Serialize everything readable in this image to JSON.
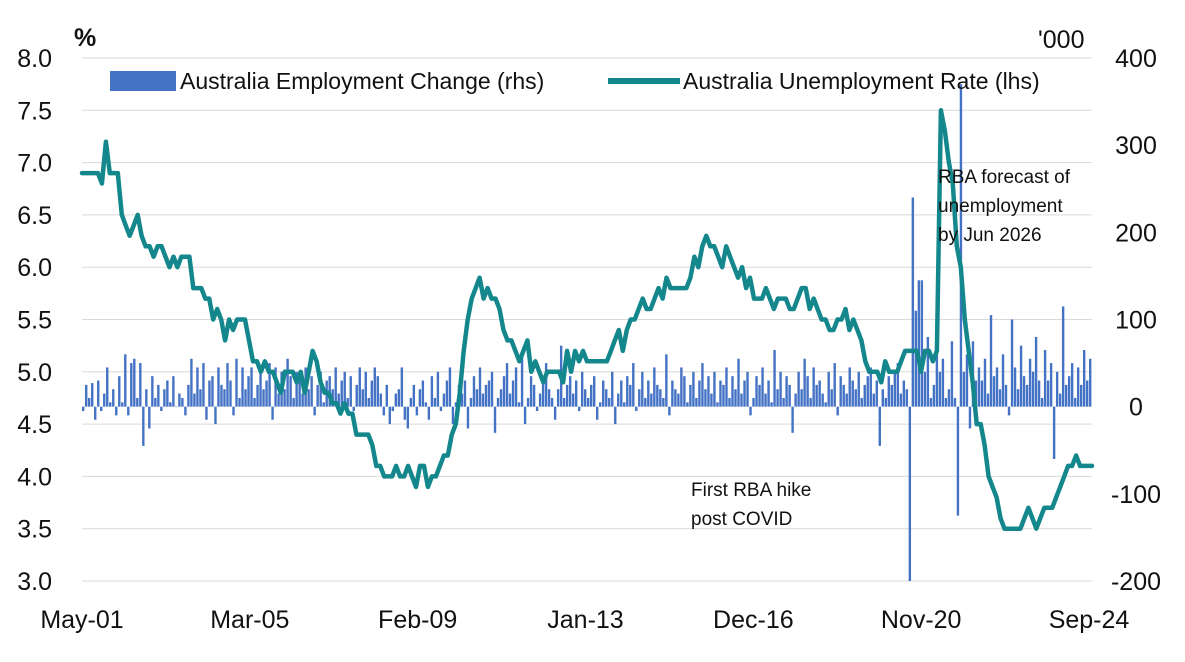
{
  "chart_data": {
    "type": "bar+line",
    "title": "",
    "x_tick_labels": [
      "May-01",
      "Mar-05",
      "Feb-09",
      "Jan-13",
      "Dec-16",
      "Nov-20",
      "Sep-24"
    ],
    "left_axis": {
      "unit": "%",
      "ylim": [
        3.0,
        8.0
      ],
      "ticks": [
        "8.0",
        "7.5",
        "7.0",
        "6.5",
        "6.0",
        "5.5",
        "5.0",
        "4.5",
        "4.0",
        "3.5",
        "3.0"
      ]
    },
    "right_axis": {
      "unit": "'000",
      "ylim": [
        -200,
        400
      ],
      "ticks": [
        "400",
        "300",
        "200",
        "100",
        "0",
        "-100",
        "-200"
      ]
    },
    "series": [
      {
        "name": "Australia Employment Change (rhs)",
        "kind": "bar",
        "axis": "right",
        "color": "#4472c4",
        "start": "May-01",
        "frequency": "monthly",
        "values": [
          -5,
          25,
          10,
          27,
          -15,
          30,
          -5,
          15,
          45,
          5,
          20,
          -10,
          35,
          5,
          60,
          -10,
          50,
          55,
          10,
          50,
          -45,
          20,
          -25,
          35,
          10,
          25,
          -5,
          20,
          30,
          5,
          35,
          0,
          15,
          10,
          -10,
          25,
          55,
          15,
          45,
          20,
          50,
          -15,
          30,
          35,
          -20,
          45,
          25,
          20,
          50,
          30,
          -10,
          55,
          10,
          45,
          20,
          35,
          45,
          10,
          25,
          40,
          20,
          30,
          50,
          -15,
          45,
          15,
          40,
          20,
          55,
          35,
          10,
          40,
          30,
          15,
          45,
          20,
          35,
          -10,
          25,
          40,
          5,
          30,
          35,
          20,
          45,
          15,
          30,
          40,
          10,
          35,
          -5,
          25,
          45,
          20,
          40,
          10,
          30,
          45,
          35,
          15,
          -10,
          25,
          -20,
          -5,
          15,
          20,
          45,
          -15,
          -25,
          10,
          25,
          -10,
          20,
          30,
          5,
          -15,
          35,
          10,
          40,
          -5,
          15,
          30,
          45,
          -20,
          5,
          25,
          15,
          30,
          -25,
          10,
          35,
          20,
          45,
          15,
          25,
          30,
          40,
          -30,
          10,
          20,
          35,
          50,
          15,
          30,
          45,
          5,
          60,
          -20,
          10,
          35,
          25,
          -5,
          15,
          30,
          50,
          20,
          10,
          -15,
          20,
          70,
          10,
          25,
          35,
          15,
          30,
          -5,
          40,
          20,
          10,
          25,
          35,
          -15,
          5,
          30,
          20,
          10,
          40,
          -20,
          15,
          30,
          5,
          35,
          25,
          50,
          -5,
          20,
          40,
          10,
          30,
          15,
          45,
          25,
          20,
          10,
          60,
          -10,
          30,
          20,
          15,
          45,
          35,
          5,
          25,
          40,
          10,
          30,
          50,
          20,
          35,
          15,
          40,
          5,
          30,
          25,
          45,
          10,
          35,
          20,
          55,
          15,
          30,
          40,
          -10,
          10,
          35,
          25,
          45,
          15,
          30,
          5,
          65,
          20,
          40,
          10,
          35,
          25,
          -30,
          15,
          40,
          20,
          55,
          35,
          10,
          45,
          25,
          30,
          15,
          5,
          40,
          20,
          50,
          -10,
          35,
          25,
          15,
          45,
          30,
          20,
          40,
          10,
          25,
          35,
          45,
          15,
          30,
          -45,
          20,
          10,
          35,
          25,
          40,
          50,
          15,
          30,
          20,
          -200,
          240,
          110,
          145,
          145,
          40,
          80,
          10,
          25,
          65,
          40,
          55,
          10,
          20,
          75,
          10,
          -125,
          370,
          40,
          60,
          -25,
          75,
          30,
          45,
          30,
          55,
          15,
          105,
          35,
          45,
          20,
          60,
          25,
          -10,
          100,
          45,
          20,
          70,
          35,
          25,
          55,
          40,
          80,
          30,
          10,
          65,
          30,
          50,
          -60,
          40,
          15,
          115,
          25,
          35,
          50,
          10,
          45,
          25,
          65,
          30,
          55
        ],
        "notable_values": {
          "Apr-20": -200,
          "Jun-20": 240,
          "Oct-21": -125,
          "Nov-21": 370
        }
      },
      {
        "name": "Australia Unemployment Rate (lhs)",
        "kind": "line",
        "axis": "left",
        "color": "#13878c",
        "start": "May-01",
        "frequency": "monthly",
        "values": [
          6.9,
          6.9,
          6.9,
          6.9,
          6.9,
          6.8,
          7.2,
          6.9,
          6.9,
          6.9,
          6.5,
          6.4,
          6.3,
          6.4,
          6.5,
          6.3,
          6.2,
          6.2,
          6.1,
          6.2,
          6.2,
          6.1,
          6.0,
          6.1,
          6.0,
          6.1,
          6.1,
          6.1,
          5.8,
          5.8,
          5.8,
          5.7,
          5.7,
          5.5,
          5.6,
          5.5,
          5.3,
          5.5,
          5.4,
          5.5,
          5.5,
          5.5,
          5.3,
          5.1,
          5.1,
          5.0,
          5.1,
          5.0,
          5.0,
          4.9,
          4.8,
          5.0,
          5.0,
          5.0,
          4.9,
          5.0,
          4.8,
          5.0,
          5.2,
          5.1,
          4.9,
          4.8,
          4.8,
          4.7,
          4.7,
          4.6,
          4.7,
          4.6,
          4.6,
          4.4,
          4.4,
          4.4,
          4.4,
          4.3,
          4.1,
          4.1,
          4.0,
          4.0,
          4.0,
          4.1,
          4.0,
          4.0,
          4.1,
          4.0,
          3.9,
          4.1,
          4.1,
          3.9,
          4.0,
          4.0,
          4.1,
          4.2,
          4.2,
          4.4,
          4.5,
          4.8,
          5.2,
          5.5,
          5.7,
          5.8,
          5.9,
          5.7,
          5.8,
          5.7,
          5.7,
          5.6,
          5.4,
          5.3,
          5.3,
          5.2,
          5.1,
          5.2,
          5.3,
          5.0,
          5.1,
          5.0,
          4.9,
          5.0,
          5.0,
          5.0,
          5.0,
          4.9,
          5.2,
          5.0,
          5.2,
          5.1,
          5.2,
          5.1,
          5.1,
          5.1,
          5.1,
          5.1,
          5.1,
          5.2,
          5.3,
          5.4,
          5.2,
          5.4,
          5.5,
          5.5,
          5.6,
          5.7,
          5.6,
          5.6,
          5.7,
          5.8,
          5.7,
          5.9,
          5.8,
          5.8,
          5.8,
          5.8,
          5.8,
          5.9,
          6.1,
          6.0,
          6.2,
          6.3,
          6.2,
          6.2,
          6.1,
          6.0,
          6.2,
          6.1,
          6.0,
          5.9,
          6.0,
          5.8,
          5.9,
          5.7,
          5.7,
          5.7,
          5.8,
          5.7,
          5.6,
          5.7,
          5.7,
          5.7,
          5.6,
          5.6,
          5.7,
          5.8,
          5.8,
          5.6,
          5.7,
          5.6,
          5.5,
          5.5,
          5.4,
          5.4,
          5.5,
          5.5,
          5.6,
          5.4,
          5.5,
          5.4,
          5.3,
          5.1,
          5.0,
          5.0,
          5.0,
          4.9,
          5.1,
          5.0,
          5.0,
          5.0,
          5.1,
          5.2,
          5.2,
          5.2,
          5.2,
          5.0,
          5.2,
          5.2,
          5.1,
          5.2,
          7.5,
          7.3,
          7.0,
          6.8,
          6.2,
          6.0,
          5.5,
          5.2,
          4.9,
          4.5,
          4.5,
          4.3,
          4.0,
          3.9,
          3.8,
          3.6,
          3.5,
          3.5,
          3.5,
          3.5,
          3.5,
          3.6,
          3.7,
          3.6,
          3.5,
          3.6,
          3.7,
          3.7,
          3.7,
          3.8,
          3.9,
          4.0,
          4.1,
          4.1,
          4.2,
          4.1,
          4.1,
          4.1,
          4.1
        ]
      }
    ],
    "legend": {
      "placement": "top",
      "items": [
        "Australia Employment Change (rhs)",
        "Australia Unemployment Rate (lhs)"
      ]
    },
    "annotations": [
      {
        "id": "rba-forecast",
        "lines": [
          "RBA forecast of",
          "unemployment",
          "by Jun 2026"
        ]
      },
      {
        "id": "first-hike",
        "lines": [
          "First RBA hike",
          "post COVID"
        ]
      }
    ]
  }
}
